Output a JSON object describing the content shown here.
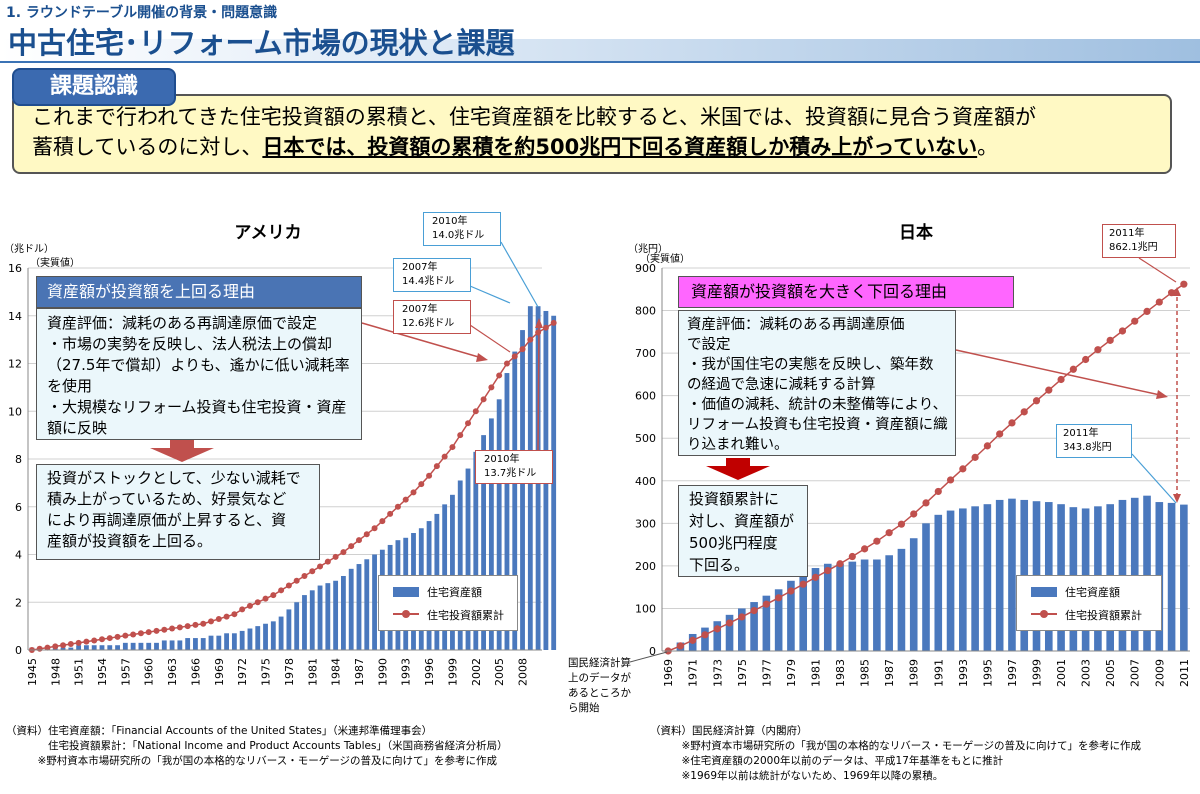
{
  "header": {
    "section": "1. ラウンドテーブル開催の背景・問題意識",
    "title": "中古住宅･リフォーム市場の現状と課題"
  },
  "issue": {
    "label": "課題認識",
    "line1": "これまで行われてきた住宅投資額の累積と、住宅資産額を比較すると、米国では、投資額に見合う資産額が",
    "line2_plain": "蓄積しているのに対し、",
    "line2_bold": "日本では、投資額の累積を約500兆円下回る資産額しか積み上がっていない",
    "line2_end": "。"
  },
  "chart_data": [
    {
      "type": "bar+line",
      "title": "アメリカ",
      "y_unit": "（兆ドル）",
      "y_subunit": "（実質値）",
      "ylim": [
        0,
        16
      ],
      "yticks": [
        0,
        2,
        4,
        6,
        8,
        10,
        12,
        14,
        16
      ],
      "x_start": 1945,
      "x_end": 2010,
      "x_tick_labels": [
        "1945",
        "1948",
        "1951",
        "1954",
        "1957",
        "1960",
        "1963",
        "1966",
        "1969",
        "1972",
        "1975",
        "1978",
        "1981",
        "1984",
        "1987",
        "1990",
        "1993",
        "1996",
        "1999",
        "2002",
        "2005",
        "2008"
      ],
      "legend": {
        "bar": "住宅資産額",
        "line": "住宅投資額累計"
      },
      "series": [
        {
          "name": "住宅資産額",
          "kind": "bar",
          "values": [
            0.1,
            0.1,
            0.1,
            0.1,
            0.1,
            0.1,
            0.2,
            0.2,
            0.2,
            0.2,
            0.2,
            0.2,
            0.3,
            0.3,
            0.3,
            0.3,
            0.3,
            0.4,
            0.4,
            0.4,
            0.5,
            0.5,
            0.5,
            0.6,
            0.6,
            0.7,
            0.7,
            0.8,
            0.9,
            1.0,
            1.1,
            1.2,
            1.4,
            1.7,
            2.0,
            2.3,
            2.5,
            2.7,
            2.8,
            2.9,
            3.1,
            3.4,
            3.6,
            3.8,
            4.0,
            4.2,
            4.4,
            4.6,
            4.7,
            4.9,
            5.1,
            5.4,
            5.7,
            6.1,
            6.5,
            7.1,
            7.6,
            8.3,
            9.0,
            9.7,
            10.5,
            11.6,
            12.5,
            13.4,
            14.4,
            14.4,
            14.2,
            14.0
          ]
        },
        {
          "name": "住宅投資額累計",
          "kind": "line",
          "values": [
            0.0,
            0.05,
            0.1,
            0.15,
            0.2,
            0.25,
            0.3,
            0.35,
            0.4,
            0.45,
            0.5,
            0.55,
            0.6,
            0.65,
            0.7,
            0.75,
            0.8,
            0.85,
            0.9,
            0.95,
            1.0,
            1.05,
            1.1,
            1.2,
            1.3,
            1.4,
            1.5,
            1.7,
            1.85,
            2.0,
            2.15,
            2.3,
            2.5,
            2.7,
            2.9,
            3.1,
            3.3,
            3.5,
            3.7,
            3.9,
            4.1,
            4.35,
            4.6,
            4.85,
            5.1,
            5.4,
            5.7,
            6.0,
            6.3,
            6.6,
            6.95,
            7.3,
            7.7,
            8.1,
            8.5,
            9.0,
            9.5,
            10.0,
            10.5,
            11.0,
            11.5,
            12.0,
            12.3,
            12.6,
            13.0,
            13.3,
            13.5,
            13.7
          ]
        }
      ],
      "callouts": [
        {
          "text1": "2010年",
          "text2": "14.0兆ドル"
        },
        {
          "text1": "2007年",
          "text2": "14.4兆ドル"
        },
        {
          "text1": "2007年",
          "text2": "12.6兆ドル"
        },
        {
          "text1": "2010年",
          "text2": "13.7兆ドル"
        }
      ]
    },
    {
      "type": "bar+line",
      "title": "日本",
      "y_unit": "（兆円）",
      "y_subunit": "（実質値）",
      "ylim": [
        0,
        900
      ],
      "yticks": [
        0,
        100,
        200,
        300,
        400,
        500,
        600,
        700,
        800,
        900
      ],
      "x_start": 1969,
      "x_end": 2011,
      "x_tick_labels": [
        "1969",
        "1971",
        "1973",
        "1975",
        "1977",
        "1979",
        "1981",
        "1983",
        "1985",
        "1987",
        "1989",
        "1991",
        "1993",
        "1995",
        "1997",
        "1999",
        "2001",
        "2003",
        "2005",
        "2007",
        "2009",
        "2011"
      ],
      "legend": {
        "bar": "住宅資産額",
        "line": "住宅投資額累計"
      },
      "series": [
        {
          "name": "住宅資産額",
          "kind": "bar",
          "values": [
            0,
            20,
            40,
            55,
            70,
            85,
            100,
            115,
            130,
            145,
            165,
            180,
            195,
            205,
            205,
            210,
            215,
            215,
            225,
            240,
            265,
            300,
            320,
            330,
            335,
            340,
            345,
            355,
            358,
            355,
            352,
            350,
            345,
            338,
            335,
            340,
            345,
            355,
            360,
            365,
            350,
            348,
            344
          ]
        },
        {
          "name": "住宅投資額累計",
          "kind": "line",
          "values": [
            0,
            12,
            25,
            38,
            52,
            66,
            80,
            95,
            110,
            125,
            141,
            157,
            173,
            189,
            205,
            222,
            240,
            258,
            278,
            298,
            322,
            348,
            375,
            402,
            428,
            455,
            482,
            510,
            536,
            562,
            588,
            613,
            638,
            662,
            685,
            708,
            730,
            752,
            775,
            798,
            820,
            842,
            862
          ]
        }
      ],
      "callouts": [
        {
          "text1": "2011年",
          "text2": "862.1兆円"
        },
        {
          "text1": "2011年",
          "text2": "343.8兆円"
        }
      ],
      "side_note": "国民経済計算上のデータがあるところから開始"
    }
  ],
  "us_boxes": {
    "header": "資産額が投資額を上回る理由",
    "body": "資産評価：減耗のある再調達原価で設定\n・市場の実勢を反映し、法人税法上の償却\n（27.5年で償却）よりも、遙かに低い減耗率\nを使用\n・大規模なリフォーム投資も住宅投資・資産\n額に反映",
    "result": "投資がストックとして、少ない減耗で\n積み上がっているため、好景気など\nにより再調達原価が上昇すると、資\n産額が投資額を上回る。"
  },
  "jp_boxes": {
    "header": "資産額が投資額を大きく下回る理由",
    "body": "資産評価：減耗のある再調達原価\nで設定\n・我が国住宅の実態を反映し、築年数\nの経過で急速に減耗する計算\n・価値の減耗、統計の未整備等により、\nリフォーム投資も住宅投資・資産額に織\nり込まれ難い。",
    "result": "投資額累計に\n対し、資産額が\n500兆円程度\n下回る。"
  },
  "sources": {
    "us": "（資料）住宅資産額：「Financial Accounts of the United States」（米連邦準備理事会）\n　　　　住宅投資額累計：「National Income and Product Accounts Tables」（米国商務省経済分析局）\n　　　※野村資本市場研究所の「我が国の本格的なリバース・モーゲージの普及に向けて」を参考に作成",
    "jp": "（資料）国民経済計算（内閣府）\n　　　※野村資本市場研究所の「我が国の本格的なリバース・モーゲージの普及に向けて」を参考に作成\n　　　※住宅資産額の2000年以前のデータは、平成17年基準をもとに推計\n　　　※1969年以前は統計がないため、1969年以降の累積。"
  },
  "colors": {
    "bar": "#4a78bd",
    "line": "#c0504d",
    "accent": "#1a4f8f",
    "us_box": "#4a74b4",
    "jp_box": "#ff66ff"
  }
}
